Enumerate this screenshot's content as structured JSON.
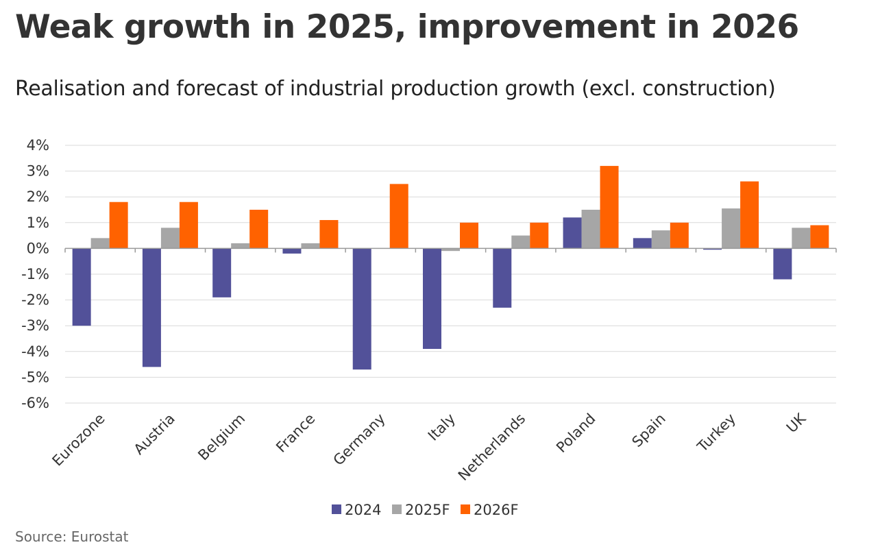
{
  "title": "Weak growth in 2025, improvement in 2026",
  "subtitle": "Realisation and forecast of industrial production growth (excl. construction)",
  "source": "Source: Eurostat",
  "colors": {
    "series_2024": "#525199",
    "series_2025F": "#a6a6a6",
    "series_2026F": "#ff6200",
    "grid": "#d9d9d9",
    "axis": "#999999"
  },
  "chart_data": {
    "type": "bar",
    "title": "Weak growth in 2025, improvement in 2026",
    "subtitle": "Realisation and forecast of industrial production growth (excl. construction)",
    "xlabel": "",
    "ylabel": "",
    "ylim": [
      -6,
      4
    ],
    "yticks": [
      4,
      3,
      2,
      1,
      0,
      -1,
      -2,
      -3,
      -4,
      -5,
      -6
    ],
    "ytick_labels": [
      "4%",
      "3%",
      "2%",
      "1%",
      "0%",
      "-1%",
      "-2%",
      "-3%",
      "-4%",
      "-5%",
      "-6%"
    ],
    "grid": true,
    "legend_position": "bottom-center",
    "categories": [
      "Eurozone",
      "Austria",
      "Belgium",
      "France",
      "Germany",
      "Italy",
      "Netherlands",
      "Poland",
      "Spain",
      "Turkey",
      "UK"
    ],
    "series": [
      {
        "name": "2024",
        "color": "#525199",
        "values": [
          -3.0,
          -4.6,
          -1.9,
          -0.2,
          -4.7,
          -3.9,
          -2.3,
          1.2,
          0.4,
          -0.05,
          -1.2
        ]
      },
      {
        "name": "2025F",
        "color": "#a6a6a6",
        "values": [
          0.4,
          0.8,
          0.2,
          0.2,
          0.0,
          -0.1,
          0.5,
          1.5,
          0.7,
          1.55,
          0.8
        ]
      },
      {
        "name": "2026F",
        "color": "#ff6200",
        "values": [
          1.8,
          1.8,
          1.5,
          1.1,
          2.5,
          1.0,
          1.0,
          3.2,
          1.0,
          2.6,
          0.9
        ]
      }
    ]
  }
}
